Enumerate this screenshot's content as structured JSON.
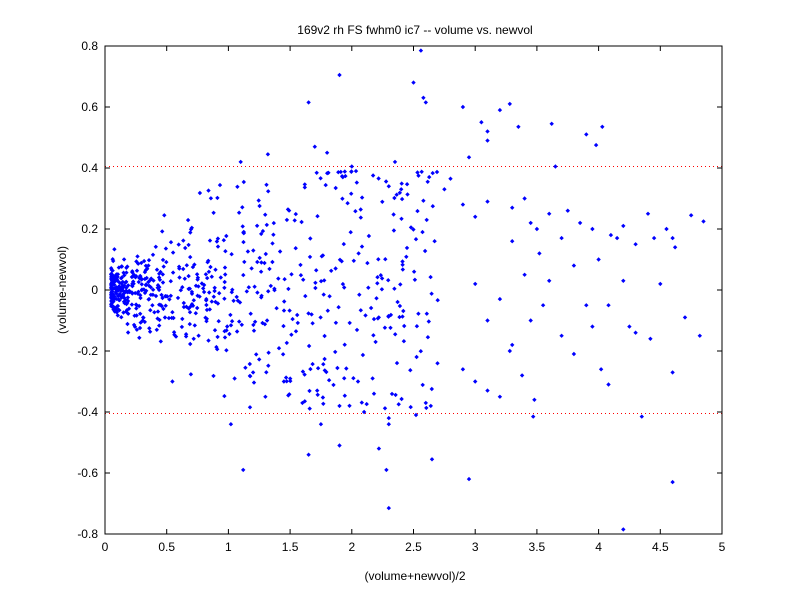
{
  "chart_data": {
    "type": "scatter",
    "title": "169v2 rh FS fwhm0 ic7 -- volume vs. newvol",
    "xlabel": "(volume+newvol)/2",
    "ylabel": "(volume-newvol)",
    "xlim": [
      0,
      5
    ],
    "ylim": [
      -0.8,
      0.8
    ],
    "x_ticks": [
      0,
      0.5,
      1,
      1.5,
      2,
      2.5,
      3,
      3.5,
      4,
      4.5,
      5
    ],
    "x_tick_labels": [
      "0",
      "0.5",
      "1",
      "1.5",
      "2",
      "2.5",
      "3",
      "3.5",
      "4",
      "4.5",
      "5"
    ],
    "y_ticks": [
      -0.8,
      -0.6,
      -0.4,
      -0.2,
      0,
      0.2,
      0.4,
      0.6,
      0.8
    ],
    "y_tick_labels": [
      "-0.8",
      "-0.6",
      "-0.4",
      "-0.2",
      "0",
      "0.2",
      "0.4",
      "0.6",
      "0.8"
    ],
    "grid": false,
    "marker_color": "#0000ff",
    "reference_lines": [
      {
        "y": 0.405,
        "color": "#ff0000",
        "style": "dotted"
      },
      {
        "y": -0.405,
        "color": "#ff0000",
        "style": "dotted"
      }
    ],
    "dense_cloud": {
      "count": 700,
      "x_range": [
        0.05,
        2.7
      ],
      "spread_at_start": 0.03,
      "spread_growth": 0.12
    },
    "points": [
      [
        2.56,
        0.785
      ],
      [
        1.9,
        0.705
      ],
      [
        2.5,
        0.68
      ],
      [
        2.58,
        0.63
      ],
      [
        2.6,
        0.615
      ],
      [
        1.65,
        0.615
      ],
      [
        2.9,
        0.6
      ],
      [
        3.28,
        0.61
      ],
      [
        3.2,
        0.59
      ],
      [
        3.05,
        0.55
      ],
      [
        3.1,
        0.52
      ],
      [
        3.35,
        0.535
      ],
      [
        3.62,
        0.545
      ],
      [
        3.9,
        0.51
      ],
      [
        4.03,
        0.535
      ],
      [
        3.98,
        0.475
      ],
      [
        3.1,
        0.49
      ],
      [
        1.7,
        0.47
      ],
      [
        1.8,
        0.45
      ],
      [
        1.32,
        0.445
      ],
      [
        2.35,
        0.42
      ],
      [
        1.1,
        0.42
      ],
      [
        2.0,
        0.405
      ],
      [
        2.95,
        0.435
      ],
      [
        3.65,
        0.405
      ],
      [
        2.3,
        0.34
      ],
      [
        2.4,
        0.33
      ],
      [
        2.8,
        0.365
      ],
      [
        2.75,
        0.33
      ],
      [
        2.9,
        0.28
      ],
      [
        3.0,
        0.24
      ],
      [
        3.1,
        0.29
      ],
      [
        3.3,
        0.27
      ],
      [
        3.4,
        0.3
      ],
      [
        3.45,
        0.22
      ],
      [
        3.5,
        0.2
      ],
      [
        3.6,
        0.25
      ],
      [
        3.7,
        0.17
      ],
      [
        3.75,
        0.26
      ],
      [
        3.85,
        0.22
      ],
      [
        3.95,
        0.2
      ],
      [
        4.1,
        0.18
      ],
      [
        4.15,
        0.17
      ],
      [
        4.2,
        0.21
      ],
      [
        4.3,
        0.15
      ],
      [
        4.4,
        0.25
      ],
      [
        4.45,
        0.17
      ],
      [
        4.55,
        0.2
      ],
      [
        4.6,
        0.17
      ],
      [
        4.62,
        0.14
      ],
      [
        4.75,
        0.245
      ],
      [
        4.85,
        0.225
      ],
      [
        3.3,
        0.16
      ],
      [
        3.4,
        0.05
      ],
      [
        3.52,
        0.12
      ],
      [
        3.6,
        0.03
      ],
      [
        3.8,
        0.08
      ],
      [
        3.9,
        -0.05
      ],
      [
        4.0,
        0.1
      ],
      [
        4.08,
        -0.05
      ],
      [
        4.2,
        0.03
      ],
      [
        4.5,
        0.02
      ],
      [
        3.0,
        0.02
      ],
      [
        3.1,
        -0.1
      ],
      [
        3.2,
        -0.03
      ],
      [
        3.3,
        -0.18
      ],
      [
        3.45,
        -0.1
      ],
      [
        3.55,
        -0.05
      ],
      [
        3.7,
        -0.15
      ],
      [
        3.8,
        -0.21
      ],
      [
        3.95,
        -0.12
      ],
      [
        4.02,
        -0.26
      ],
      [
        4.08,
        -0.31
      ],
      [
        4.25,
        -0.12
      ],
      [
        4.3,
        -0.14
      ],
      [
        4.42,
        -0.16
      ],
      [
        4.6,
        -0.27
      ],
      [
        4.7,
        -0.09
      ],
      [
        4.82,
        -0.15
      ],
      [
        2.9,
        -0.26
      ],
      [
        3.0,
        -0.3
      ],
      [
        3.1,
        -0.33
      ],
      [
        3.2,
        -0.35
      ],
      [
        3.28,
        -0.2
      ],
      [
        3.38,
        -0.28
      ],
      [
        3.48,
        -0.36
      ],
      [
        2.6,
        -0.37
      ],
      [
        2.64,
        -0.38
      ],
      [
        2.52,
        -0.41
      ],
      [
        2.3,
        -0.42
      ],
      [
        2.3,
        -0.44
      ],
      [
        3.47,
        -0.415
      ],
      [
        4.35,
        -0.415
      ],
      [
        1.02,
        -0.44
      ],
      [
        1.75,
        -0.44
      ],
      [
        1.9,
        -0.51
      ],
      [
        2.22,
        -0.52
      ],
      [
        2.65,
        -0.555
      ],
      [
        1.65,
        -0.54
      ],
      [
        2.28,
        -0.59
      ],
      [
        1.12,
        -0.59
      ],
      [
        2.95,
        -0.62
      ],
      [
        4.6,
        -0.63
      ],
      [
        2.3,
        -0.715
      ],
      [
        4.2,
        -0.785
      ],
      [
        1.05,
        -0.29
      ],
      [
        1.2,
        -0.27
      ],
      [
        1.3,
        -0.35
      ],
      [
        1.45,
        -0.3
      ],
      [
        1.6,
        -0.37
      ],
      [
        1.72,
        -0.33
      ],
      [
        1.9,
        -0.38
      ],
      [
        2.05,
        -0.3
      ],
      [
        2.1,
        -0.4
      ],
      [
        2.18,
        -0.34
      ]
    ]
  }
}
